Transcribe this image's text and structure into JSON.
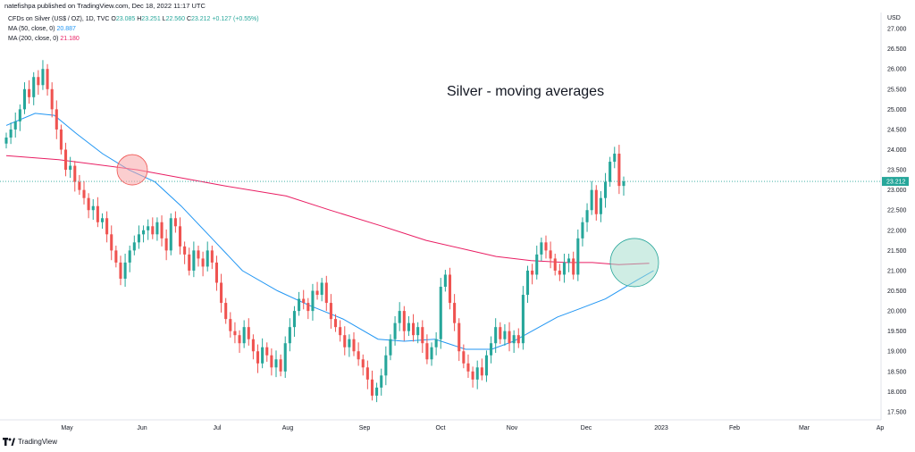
{
  "header": {
    "publisher": "natefishpa published on TradingView.com, Dec 18, 2022 11:17 UTC"
  },
  "legend": {
    "symbol": "CFDs on Silver (US$ / OZ), 1D, TVC",
    "o_label": "O",
    "o": "23.085",
    "h_label": "H",
    "h": "23.251",
    "l_label": "L",
    "l": "22.560",
    "c_label": "C",
    "c": "23.212",
    "change": "+0.127 (+0.55%)",
    "ma50_label": "MA (50, close, 0)",
    "ma50": "20.887",
    "ma200_label": "MA (200, close, 0)",
    "ma200": "21.180"
  },
  "currency": "USD",
  "brand": "TradingView",
  "colors": {
    "up": "#26a69a",
    "down": "#ef5350",
    "ma50": "#2196f3",
    "ma200": "#e91e63",
    "circle_red": "#f8a5a8",
    "circle_green": "#9fdcc9"
  },
  "chart_data": {
    "type": "candlestick",
    "title": "Silver - moving averages",
    "xlabel": "",
    "ylabel": "",
    "ylim": [
      17.3,
      27.4
    ],
    "y_ticks": [
      "17.500",
      "18.000",
      "18.500",
      "19.000",
      "19.500",
      "20.000",
      "20.500",
      "21.000",
      "21.500",
      "22.000",
      "22.500",
      "23.000",
      "23.500",
      "24.000",
      "24.500",
      "25.000",
      "25.500",
      "26.000",
      "26.500",
      "27.000"
    ],
    "x_ticks": [
      "May",
      "Jun",
      "Jul",
      "Aug",
      "Sep",
      "Oct",
      "Nov",
      "Dec",
      "2023",
      "Feb",
      "Mar",
      "Ap"
    ],
    "last_price_label": "23.212",
    "last_price": 23.212,
    "closes": [
      24.3,
      24.5,
      24.7,
      25.0,
      25.5,
      25.3,
      25.8,
      25.6,
      26.0,
      25.5,
      25.0,
      24.5,
      24.0,
      23.5,
      23.6,
      23.2,
      23.0,
      22.8,
      22.5,
      22.6,
      22.2,
      22.3,
      21.9,
      21.5,
      21.2,
      20.8,
      21.2,
      21.5,
      21.7,
      21.9,
      22.0,
      22.1,
      21.9,
      22.2,
      21.8,
      21.5,
      22.3,
      22.1,
      21.6,
      21.4,
      21.0,
      21.5,
      21.3,
      21.1,
      21.5,
      21.2,
      20.7,
      20.2,
      19.8,
      19.5,
      19.4,
      19.2,
      19.6,
      19.3,
      19.0,
      18.7,
      19.1,
      18.9,
      18.6,
      18.8,
      18.5,
      19.2,
      19.6,
      20.0,
      20.3,
      20.2,
      20.0,
      20.5,
      20.4,
      20.7,
      20.2,
      19.8,
      19.6,
      19.4,
      19.1,
      19.3,
      19.0,
      18.8,
      18.6,
      18.3,
      17.9,
      18.1,
      18.4,
      18.9,
      19.3,
      19.7,
      20.0,
      19.5,
      19.7,
      19.4,
      19.6,
      19.2,
      18.8,
      19.1,
      19.3,
      20.6,
      20.9,
      20.2,
      19.7,
      19.0,
      18.7,
      18.5,
      18.3,
      18.6,
      18.4,
      18.9,
      19.2,
      19.6,
      19.3,
      19.5,
      19.2,
      19.4,
      19.2,
      20.4,
      21.0,
      20.9,
      21.4,
      21.7,
      21.5,
      21.3,
      21.0,
      20.9,
      21.2,
      21.3,
      20.9,
      21.8,
      22.2,
      22.5,
      23.0,
      22.4,
      22.8,
      23.2,
      23.7,
      23.9,
      23.1,
      23.212
    ],
    "moving_averages": [
      {
        "name": "MA (50, close, 0)",
        "x_fraction": [
          0,
          0.033,
          0.055,
          0.08,
          0.11,
          0.14,
          0.17,
          0.2,
          0.235,
          0.27,
          0.31,
          0.345,
          0.385,
          0.425,
          0.455,
          0.49,
          0.525,
          0.555,
          0.58,
          0.605,
          0.63,
          0.655,
          0.685,
          0.72,
          0.74
        ],
        "values": [
          24.6,
          24.9,
          24.85,
          24.4,
          23.9,
          23.5,
          23.2,
          22.6,
          21.8,
          21.0,
          20.5,
          20.15,
          19.8,
          19.3,
          19.25,
          19.3,
          19.05,
          19.05,
          19.25,
          19.55,
          19.85,
          20.05,
          20.3,
          20.75,
          21.0
        ]
      },
      {
        "name": "MA (200, close, 0)",
        "x_fraction": [
          0,
          0.06,
          0.15,
          0.25,
          0.32,
          0.37,
          0.43,
          0.48,
          0.53,
          0.56,
          0.6,
          0.64,
          0.67,
          0.7,
          0.735
        ],
        "values": [
          23.85,
          23.75,
          23.5,
          23.1,
          22.85,
          22.5,
          22.1,
          21.75,
          21.5,
          21.35,
          21.25,
          21.2,
          21.2,
          21.15,
          21.18
        ]
      }
    ]
  }
}
